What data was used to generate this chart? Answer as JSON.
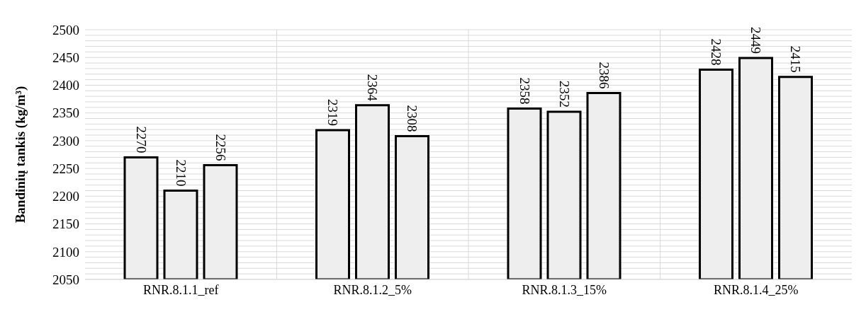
{
  "chart_data": {
    "type": "bar",
    "ylabel": "Bandinių tankis (kg/m³)",
    "categories": [
      "RNR.8.1.1_ref",
      "RNR.8.1.2_5%",
      "RNR.8.1.3_15%",
      "RNR.8.1.4_25%"
    ],
    "series": [
      {
        "color": "#eeeeee",
        "values": [
          2270,
          2319,
          2358,
          2428
        ]
      },
      {
        "color": "#eeeeee",
        "values": [
          2210,
          2364,
          2352,
          2449
        ]
      },
      {
        "color": "#eeeeee",
        "values": [
          2256,
          2308,
          2386,
          2415
        ]
      }
    ],
    "ylim": [
      2050,
      2500
    ],
    "yticks": [
      2050,
      {
        "value": 2060,
        "label": null
      },
      {
        "value": 2070,
        "label": null
      },
      {
        "value": 2080,
        "label": null
      },
      {
        "value": 2090,
        "label": null
      },
      2100,
      {
        "value": 2110,
        "label": null
      },
      {
        "value": 2120,
        "label": null
      },
      {
        "value": 2130,
        "label": null
      },
      {
        "value": 2140,
        "label": null
      },
      2150,
      {
        "value": 2160,
        "label": null
      },
      {
        "value": 2170,
        "label": null
      },
      {
        "value": 2180,
        "label": null
      },
      {
        "value": 2190,
        "label": null
      },
      2200,
      {
        "value": 2210,
        "label": null
      },
      {
        "value": 2220,
        "label": null
      },
      {
        "value": 2230,
        "label": null
      },
      {
        "value": 2240,
        "label": null
      },
      2250,
      {
        "value": 2260,
        "label": null
      },
      {
        "value": 2270,
        "label": null
      },
      {
        "value": 2280,
        "label": null
      },
      {
        "value": 2290,
        "label": null
      },
      2300,
      {
        "value": 2310,
        "label": null
      },
      {
        "value": 2320,
        "label": null
      },
      {
        "value": 2330,
        "label": null
      },
      {
        "value": 2340,
        "label": null
      },
      2350,
      {
        "value": 2360,
        "label": null
      },
      {
        "value": 2370,
        "label": null
      },
      {
        "value": 2380,
        "label": null
      },
      {
        "value": 2390,
        "label": null
      },
      2400,
      {
        "value": 2410,
        "label": null
      },
      {
        "value": 2420,
        "label": null
      },
      {
        "value": 2430,
        "label": null
      },
      {
        "value": 2440,
        "label": null
      },
      2450,
      {
        "value": 2460,
        "label": null
      },
      {
        "value": 2470,
        "label": null
      },
      {
        "value": 2480,
        "label": null
      },
      {
        "value": 2490,
        "label": null
      },
      2500
    ],
    "grid": true,
    "data_labels": true,
    "legend": false
  }
}
